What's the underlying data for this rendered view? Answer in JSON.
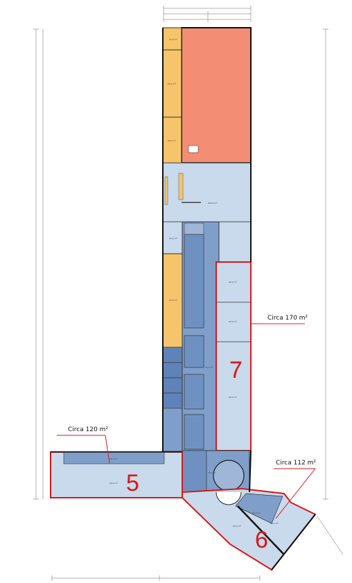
{
  "units": [
    {
      "number": "5",
      "area_label": "Circa 120 m²"
    },
    {
      "number": "6",
      "area_label": "Circa 112 m²"
    },
    {
      "number": "7",
      "area_label": "Circa 170 m²"
    }
  ],
  "colors": {
    "unit_outline": "#d81818",
    "warehouse": "#f38d73",
    "office": "#f6c46a",
    "hall": "#c8daeb",
    "corridor": "#7f9fca",
    "wall": "#111111"
  }
}
